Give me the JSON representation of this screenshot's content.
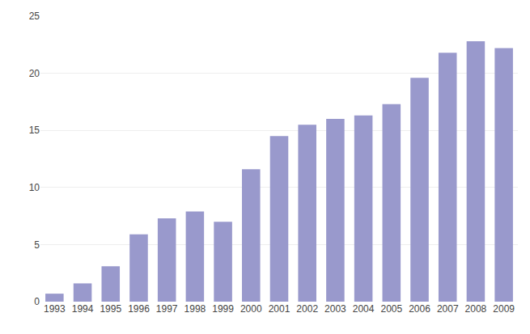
{
  "chart_data": {
    "type": "bar",
    "categories": [
      "1993",
      "1994",
      "1995",
      "1996",
      "1997",
      "1998",
      "1999",
      "2000",
      "2001",
      "2002",
      "2003",
      "2004",
      "2005",
      "2006",
      "2007",
      "2008",
      "2009"
    ],
    "values": [
      0.7,
      1.6,
      3.1,
      5.9,
      7.3,
      7.9,
      7.0,
      11.6,
      14.5,
      15.5,
      16.0,
      16.3,
      17.3,
      19.6,
      21.8,
      22.8,
      22.2
    ],
    "color": "#9999cc",
    "ylim": [
      0,
      25
    ],
    "yticks": [
      0,
      5,
      10,
      15,
      20,
      25
    ],
    "grid": true
  }
}
